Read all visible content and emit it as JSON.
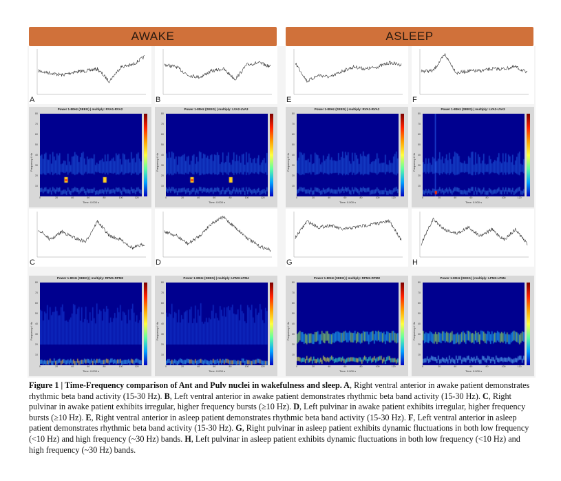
{
  "headers": {
    "awake": "AWAKE",
    "asleep": "ASLEEP"
  },
  "traces": [
    {
      "letter": "A",
      "id": "a"
    },
    {
      "letter": "B",
      "id": "b"
    },
    {
      "letter": "E",
      "id": "e"
    },
    {
      "letter": "F",
      "id": "f"
    },
    {
      "letter": "C",
      "id": "c"
    },
    {
      "letter": "D",
      "id": "d"
    },
    {
      "letter": "G",
      "id": "g"
    },
    {
      "letter": "H",
      "id": "h"
    }
  ],
  "spectrograms": [
    {
      "title": "Power 1-80Hz (SEEG) | multiply: RVA1-RVA2"
    },
    {
      "title": "Power 1-80Hz (SEEG) | multiply: LVA2-LVA3"
    },
    {
      "title": "Power 1-80Hz (SEEG) | multiply: RVA1-RVA2"
    },
    {
      "title": "Power 1-80Hz (SEEG) | multiply: LVA2-LVA3"
    },
    {
      "title": "Power 1-80Hz (SEEG) | multiply: RPM1-RPM2"
    },
    {
      "title": "Power 1-80Hz (SEEG) | multiply: LPM3-LPM4"
    },
    {
      "title": "Power 1-80Hz (SEEG) | multiply: RPM1-RPM2"
    },
    {
      "title": "Power 1-80Hz (SEEG) | multiply: LPM3-LPM4"
    }
  ],
  "axes": {
    "ylabel": "Frequency / Hz",
    "xlabel": "Time: 0.000 s",
    "yticks": [
      "80",
      "70",
      "60",
      "50",
      "40",
      "30",
      "20",
      "10"
    ],
    "xticks": [
      "0",
      "20",
      "40",
      "60",
      "80",
      "100",
      "120"
    ]
  },
  "caption": {
    "segments": [
      {
        "bold": true,
        "text": "Figure 1 | Time-Frequency comparison of Ant and Pulv nuclei in wakefulness and sleep. A"
      },
      {
        "bold": false,
        "text": ", Right ventral anterior in awake patient demonstrates rhythmic beta band activity (15-30 Hz). "
      },
      {
        "bold": true,
        "text": "B"
      },
      {
        "bold": false,
        "text": ", Left ventral anterior in awake patient demonstrates rhythmic beta band activity (15-30 Hz). "
      },
      {
        "bold": true,
        "text": "C"
      },
      {
        "bold": false,
        "text": ", Right pulvinar in awake patient exhibits irregular, higher frequency bursts (≥10 Hz). "
      },
      {
        "bold": true,
        "text": "D"
      },
      {
        "bold": false,
        "text": ", Left pulvinar in awake patient exhibits irregular, higher frequency bursts (≥10 Hz). "
      },
      {
        "bold": true,
        "text": "E"
      },
      {
        "bold": false,
        "text": ", Right ventral anterior in asleep patient demonstrates rhythmic beta band activity (15-30 Hz). "
      },
      {
        "bold": true,
        "text": "F"
      },
      {
        "bold": false,
        "text": ", Left ventral anterior in asleep patient demonstrates rhythmic beta band activity (15-30 Hz). "
      },
      {
        "bold": true,
        "text": "G"
      },
      {
        "bold": false,
        "text": ", Right pulvinar in asleep patient exhibits dynamic fluctuations in both low frequency (<10 Hz) and high frequency (~30 Hz) bands. "
      },
      {
        "bold": true,
        "text": "H"
      },
      {
        "bold": false,
        "text": ", Left pulvinar in asleep patient exhibits dynamic fluctuations in both low frequency (<10 Hz) and high frequency (~30 Hz) bands."
      }
    ]
  }
}
